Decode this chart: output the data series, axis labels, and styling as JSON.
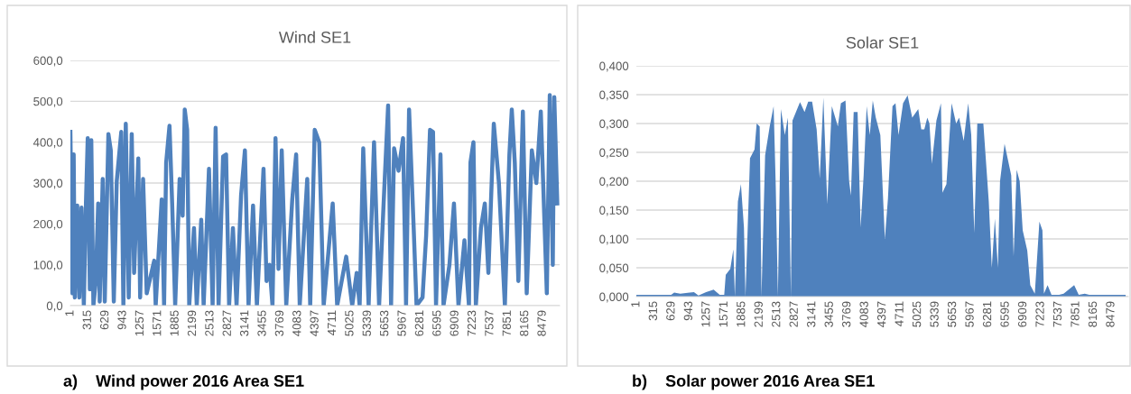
{
  "chart_data": [
    {
      "type": "line",
      "title": "Wind SE1",
      "annotations": [
        "a)    Wind power 2016 Area SE1"
      ],
      "grid": "y",
      "line_style": "solid",
      "marker": "none",
      "xlim": [
        1,
        8784
      ],
      "xticks": [
        1,
        315,
        629,
        943,
        1257,
        1571,
        1885,
        2199,
        2513,
        2827,
        3141,
        3455,
        3769,
        4083,
        4397,
        4711,
        5025,
        5339,
        5653,
        5967,
        6281,
        6595,
        6909,
        7223,
        7537,
        7851,
        8165,
        8479
      ],
      "ylim": [
        0,
        600
      ],
      "yticks": [
        {
          "value": 0,
          "label": "0,0"
        },
        {
          "value": 100,
          "label": "100,0"
        },
        {
          "value": 200,
          "label": "200,0"
        },
        {
          "value": 300,
          "label": "300,0"
        },
        {
          "value": 400,
          "label": "400,0"
        },
        {
          "value": 500,
          "label": "500,0"
        },
        {
          "value": 600,
          "label": "600,0"
        }
      ],
      "series": [
        {
          "color": "#4f81bd",
          "x": [
            1,
            38,
            60,
            80,
            124,
            161,
            200,
            242,
            280,
            312,
            350,
            376,
            414,
            457,
            500,
            527,
            581,
            618,
            683,
            726,
            780,
            833,
            914,
            952,
            995,
            1048,
            1102,
            1145,
            1220,
            1253,
            1306,
            1371,
            1505,
            1532,
            1640,
            1683,
            1720,
            1780,
            1828,
            1882,
            1962,
            2016,
            2054,
            2097,
            2134,
            2220,
            2269,
            2350,
            2393,
            2489,
            2554,
            2608,
            2661,
            2742,
            2796,
            2850,
            2919,
            2984,
            3065,
            3134,
            3199,
            3280,
            3349,
            3468,
            3522,
            3575,
            3629,
            3683,
            3737,
            3795,
            3876,
            3984,
            4054,
            4118,
            4253,
            4306,
            4387,
            4468,
            4548,
            4710,
            4790,
            4952,
            5060,
            5140,
            5194,
            5258,
            5355,
            5452,
            5543,
            5624,
            5705,
            5758,
            5812,
            5892,
            5973,
            6027,
            6081,
            6161,
            6215,
            6323,
            6387,
            6457,
            6511,
            6565,
            6645,
            6699,
            6806,
            6887,
            6968,
            7075,
            7156,
            7183,
            7237,
            7280,
            7371,
            7441,
            7505,
            7602,
            7694,
            7801,
            7882,
            7925,
            7979,
            8043,
            8124,
            8193,
            8285,
            8366,
            8446,
            8554,
            8607,
            8661,
            8688,
            8742
          ],
          "values": [
            425,
            30,
            370,
            20,
            245,
            20,
            240,
            0,
            250,
            410,
            40,
            405,
            0,
            60,
            250,
            10,
            310,
            10,
            420,
            380,
            10,
            305,
            425,
            0,
            445,
            20,
            420,
            80,
            360,
            20,
            310,
            30,
            110,
            0,
            260,
            0,
            350,
            440,
            250,
            0,
            310,
            220,
            480,
            430,
            0,
            190,
            0,
            210,
            0,
            335,
            0,
            435,
            0,
            365,
            370,
            0,
            190,
            0,
            270,
            380,
            0,
            245,
            0,
            335,
            60,
            100,
            0,
            410,
            90,
            380,
            0,
            260,
            370,
            0,
            310,
            0,
            430,
            400,
            0,
            250,
            0,
            120,
            0,
            80,
            0,
            385,
            0,
            400,
            0,
            250,
            490,
            0,
            385,
            330,
            410,
            0,
            480,
            200,
            0,
            20,
            170,
            430,
            425,
            0,
            370,
            0,
            100,
            250,
            0,
            160,
            0,
            350,
            400,
            0,
            190,
            250,
            80,
            445,
            300,
            0,
            370,
            480,
            350,
            60,
            475,
            30,
            380,
            300,
            475,
            30,
            515,
            100,
            510,
            250
          ]
        }
      ]
    },
    {
      "type": "area",
      "title": "Solar SE1",
      "annotations": [
        "b)    Solar power 2016 Area SE1"
      ],
      "grid": "y",
      "xlim": [
        1,
        8784
      ],
      "xticks": [
        1,
        315,
        629,
        943,
        1257,
        1571,
        1885,
        2199,
        2513,
        2827,
        3141,
        3455,
        3769,
        4083,
        4397,
        4711,
        5025,
        5339,
        5653,
        5967,
        6281,
        6595,
        6909,
        7223,
        7537,
        7851,
        8165,
        8479
      ],
      "ylim": [
        0,
        0.4
      ],
      "yticks": [
        {
          "value": 0,
          "label": "0,000"
        },
        {
          "value": 0.05,
          "label": "0,050"
        },
        {
          "value": 0.1,
          "label": "0,100"
        },
        {
          "value": 0.15,
          "label": "0,150"
        },
        {
          "value": 0.2,
          "label": "0,200"
        },
        {
          "value": 0.25,
          "label": "0,250"
        },
        {
          "value": 0.3,
          "label": "0,300"
        },
        {
          "value": 0.35,
          "label": "0,350"
        },
        {
          "value": 0.4,
          "label": "0,400"
        }
      ],
      "series": [
        {
          "color": "#4f81bd",
          "x": [
            1,
            623,
            677,
            786,
            1029,
            1110,
            1246,
            1381,
            1489,
            1570,
            1597,
            1678,
            1733,
            1760,
            1814,
            1868,
            1922,
            1949,
            2030,
            2111,
            2149,
            2203,
            2235,
            2300,
            2382,
            2452,
            2490,
            2528,
            2582,
            2652,
            2706,
            2761,
            2788,
            2923,
            3004,
            3069,
            3139,
            3220,
            3275,
            3340,
            3410,
            3491,
            3599,
            3653,
            3735,
            3800,
            3832,
            3881,
            3951,
            4005,
            4059,
            4113,
            4168,
            4222,
            4276,
            4357,
            4438,
            4493,
            4574,
            4628,
            4682,
            4763,
            4844,
            4926,
            5034,
            5088,
            5142,
            5196,
            5234,
            5277,
            5358,
            5439,
            5466,
            5537,
            5629,
            5710,
            5764,
            5845,
            5926,
            5980,
            6034,
            6088,
            6196,
            6293,
            6347,
            6402,
            6456,
            6494,
            6575,
            6629,
            6694,
            6737,
            6791,
            6845,
            6899,
            6980,
            7034,
            7115,
            7197,
            7251,
            7278,
            7343,
            7413,
            7548,
            7629,
            7818,
            7899,
            8007,
            8088,
            8737
          ],
          "values": [
            0.003,
            0.003,
            0.007,
            0.005,
            0.008,
            0.002,
            0.008,
            0.012,
            0.003,
            0.003,
            0.038,
            0.048,
            0.082,
            0.0,
            0.165,
            0.195,
            0.12,
            0.0,
            0.24,
            0.255,
            0.3,
            0.295,
            0.0,
            0.245,
            0.295,
            0.33,
            0.19,
            0.0,
            0.325,
            0.28,
            0.31,
            0.0,
            0.305,
            0.337,
            0.32,
            0.338,
            0.338,
            0.29,
            0.205,
            0.345,
            0.16,
            0.33,
            0.295,
            0.335,
            0.34,
            0.2,
            0.175,
            0.32,
            0.32,
            0.12,
            0.21,
            0.33,
            0.28,
            0.34,
            0.31,
            0.28,
            0.1,
            0.17,
            0.33,
            0.335,
            0.28,
            0.335,
            0.349,
            0.31,
            0.325,
            0.29,
            0.29,
            0.31,
            0.3,
            0.23,
            0.305,
            0.335,
            0.18,
            0.195,
            0.335,
            0.3,
            0.31,
            0.27,
            0.335,
            0.28,
            0.11,
            0.3,
            0.3,
            0.165,
            0.05,
            0.135,
            0.05,
            0.2,
            0.265,
            0.24,
            0.21,
            0.07,
            0.22,
            0.2,
            0.115,
            0.08,
            0.02,
            0.005,
            0.13,
            0.115,
            0.005,
            0.02,
            0.003,
            0.003,
            0.005,
            0.02,
            0.003,
            0.005,
            0.003,
            0.003
          ]
        }
      ]
    }
  ]
}
